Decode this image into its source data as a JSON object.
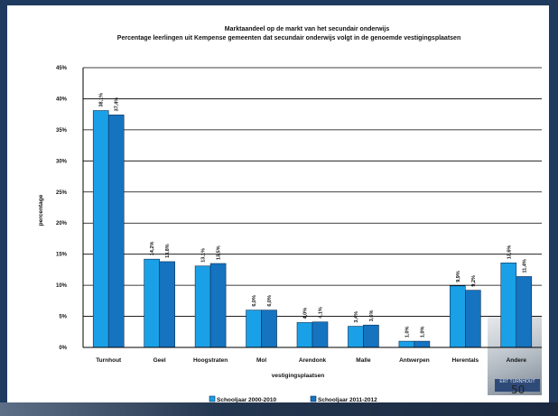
{
  "chart_data": {
    "type": "bar",
    "title": "Marktaandeel op de markt van het secundair onderwijs",
    "subtitle": "Percentage leerlingen uit Kempense gemeenten dat secundair onderwijs volgt in de genoemde vestigingsplaatsen",
    "xlabel": "vestigingsplaatsen",
    "ylabel": "percentage",
    "ylim": [
      0,
      45
    ],
    "yticks": [
      "0%",
      "5%",
      "10%",
      "15%",
      "20%",
      "25%",
      "30%",
      "35%",
      "40%",
      "45%"
    ],
    "grid": true,
    "legend_position": "bottom",
    "categories": [
      "Turnhout",
      "Geel",
      "Hoogstraten",
      "Mol",
      "Arendonk",
      "Malle",
      "Antwerpen",
      "Herentals",
      "Andere"
    ],
    "series": [
      {
        "name": "Schooljaar 2000-2010",
        "color": "#1aa0e6",
        "values": [
          38.1,
          14.2,
          13.1,
          6.0,
          4.0,
          3.4,
          1.0,
          9.9,
          13.6
        ],
        "labels": [
          "38,1%",
          "14,2%",
          "13,1%",
          "6,0%",
          "4,0%",
          "3,4%",
          "1,0%",
          "9,9%",
          "13,6%"
        ]
      },
      {
        "name": "Schooljaar 2011-2012",
        "color": "#1673c0",
        "values": [
          37.4,
          13.8,
          13.5,
          6.0,
          4.1,
          3.6,
          1.0,
          9.2,
          11.4
        ],
        "labels": [
          "37,4%",
          "13,8%",
          "13,5%",
          "6,0%",
          "4,1%",
          "3,6%",
          "1,0%",
          "9,2%",
          "11,4%"
        ]
      }
    ]
  },
  "page_number": "50",
  "logo_text": "ERT TURNHOUT"
}
